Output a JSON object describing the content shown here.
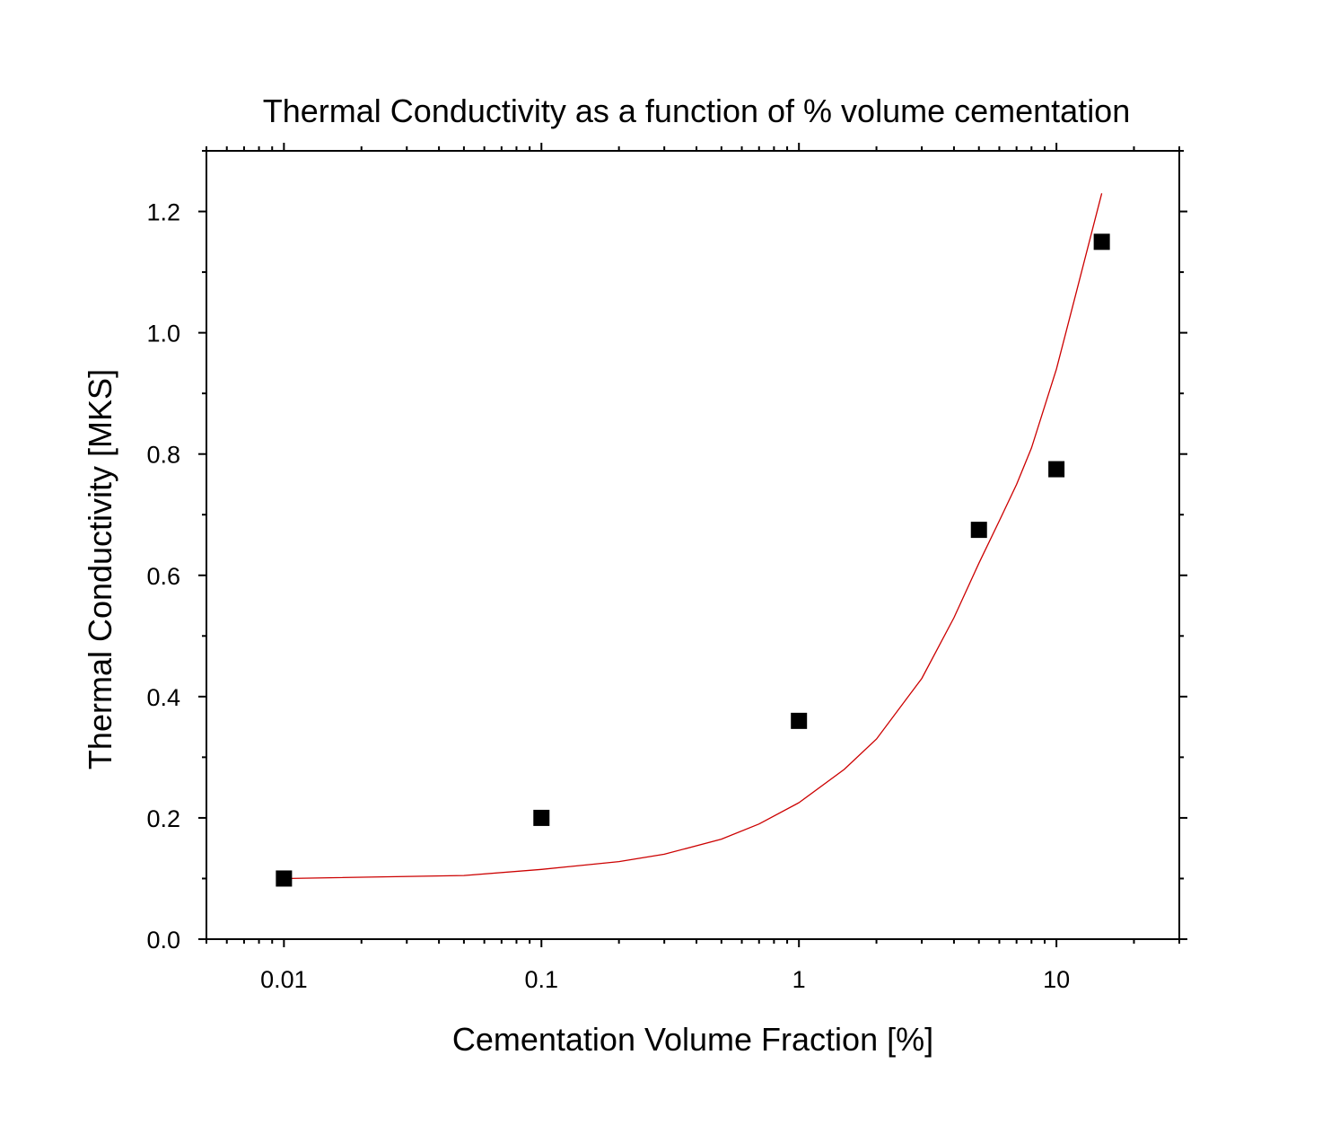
{
  "chart_data": {
    "type": "scatter",
    "title": "Thermal Conductivity as a function of % volume cementation",
    "xlabel": "Cementation Volume Fraction [%]",
    "ylabel": "Thermal Conductivity [MKS]",
    "x_scale": "log",
    "xlim": [
      0.005,
      30
    ],
    "ylim": [
      0.0,
      1.3
    ],
    "x_ticks": [
      0.01,
      0.1,
      1,
      10
    ],
    "x_tick_labels": [
      "0.01",
      "0.1",
      "1",
      "10"
    ],
    "y_ticks": [
      0.0,
      0.2,
      0.4,
      0.6,
      0.8,
      1.0,
      1.2
    ],
    "y_tick_labels": [
      "0.0",
      "0.2",
      "0.4",
      "0.6",
      "0.8",
      "1.0",
      "1.2"
    ],
    "grid": false,
    "legend": "none",
    "series": [
      {
        "kind": "scatter",
        "marker": "square",
        "color": "#000000",
        "x": [
          0.01,
          0.1,
          1,
          5,
          10,
          15
        ],
        "y": [
          0.1,
          0.2,
          0.36,
          0.675,
          0.775,
          1.15
        ]
      },
      {
        "kind": "fit-line",
        "color": "#cc0000",
        "x": [
          0.01,
          0.05,
          0.1,
          0.2,
          0.3,
          0.5,
          0.7,
          1,
          1.5,
          2,
          3,
          4,
          5,
          6,
          7,
          8,
          10,
          12,
          15
        ],
        "y": [
          0.1,
          0.105,
          0.115,
          0.128,
          0.14,
          0.165,
          0.19,
          0.225,
          0.28,
          0.33,
          0.43,
          0.53,
          0.62,
          0.69,
          0.75,
          0.81,
          0.94,
          1.07,
          1.23
        ]
      }
    ]
  }
}
